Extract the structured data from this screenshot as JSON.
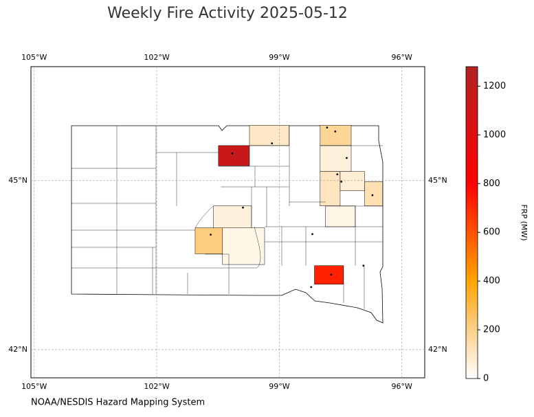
{
  "chart_data": {
    "type": "map",
    "title": "Weekly Fire Activity 2025-05-12",
    "source": "NOAA/NESDIS Hazard Mapping System",
    "xlim": [
      -105.08,
      -95.44
    ],
    "ylim": [
      41.5,
      47.02
    ],
    "xticks": [
      {
        "value": -105,
        "label": "105°W"
      },
      {
        "value": -102,
        "label": "102°W"
      },
      {
        "value": -99,
        "label": "99°W"
      },
      {
        "value": -96,
        "label": "96°W"
      }
    ],
    "yticks": [
      {
        "value": 42,
        "label": "42°N"
      },
      {
        "value": 45,
        "label": "45°N"
      }
    ],
    "grid": true,
    "colorbar": {
      "label": "FRP (MW)",
      "lim": [
        0,
        1280
      ],
      "ticks": [
        0,
        200,
        400,
        600,
        800,
        1000,
        1200
      ],
      "colormap": [
        {
          "value": 0,
          "color": "#ffffff"
        },
        {
          "value": 200,
          "color": "#fdd08a"
        },
        {
          "value": 400,
          "color": "#ffa500"
        },
        {
          "value": 800,
          "color": "#ff0000"
        },
        {
          "value": 1280,
          "color": "#b22222"
        }
      ]
    },
    "regions": [
      {
        "lon": [
          -100.49,
          -99.73
        ],
        "lat": [
          45.26,
          45.62
        ],
        "frp": 1150
      },
      {
        "lon": [
          -99.73,
          -98.76
        ],
        "lat": [
          45.62,
          45.98
        ],
        "frp": 100
      },
      {
        "lon": [
          -98.0,
          -97.24
        ],
        "lat": [
          45.62,
          45.98
        ],
        "frp": 180
      },
      {
        "lon": [
          -98.0,
          -97.24
        ],
        "lat": [
          45.16,
          45.62
        ],
        "frp": 60
      },
      {
        "lon": [
          -98.0,
          -97.51
        ],
        "lat": [
          44.55,
          45.16
        ],
        "frp": 110
      },
      {
        "lon": [
          -97.51,
          -96.91
        ],
        "lat": [
          44.82,
          45.16
        ],
        "frp": 70
      },
      {
        "lon": [
          -96.91,
          -96.47
        ],
        "lat": [
          44.55,
          44.98
        ],
        "frp": 130
      },
      {
        "lon": [
          -100.61,
          -99.68
        ],
        "lat": [
          44.06,
          44.55
        ],
        "frp": 60
      },
      {
        "lon": [
          -101.06,
          -100.39
        ],
        "lat": [
          43.7,
          44.16
        ],
        "frp": 220
      },
      {
        "lon": [
          -100.39,
          -99.36
        ],
        "lat": [
          43.51,
          44.16
        ],
        "frp": 40
      },
      {
        "lon": [
          -98.14,
          -97.43
        ],
        "lat": [
          43.16,
          43.49
        ],
        "frp": 720
      },
      {
        "lon": [
          -97.87,
          -97.14
        ],
        "lat": [
          44.18,
          44.55
        ],
        "frp": 40
      }
    ],
    "fires": {
      "lon": [
        -100.15,
        -99.18,
        -100.68,
        -97.83,
        -97.63,
        -97.58,
        -97.48,
        -96.72,
        -98.19,
        -97.73,
        -96.94,
        -99.89,
        -97.35,
        -98.22
      ],
      "lat": [
        45.48,
        45.66,
        44.04,
        45.94,
        45.87,
        45.11,
        44.98,
        44.74,
        44.05,
        43.33,
        43.49,
        44.52,
        45.4,
        43.11
      ]
    }
  }
}
